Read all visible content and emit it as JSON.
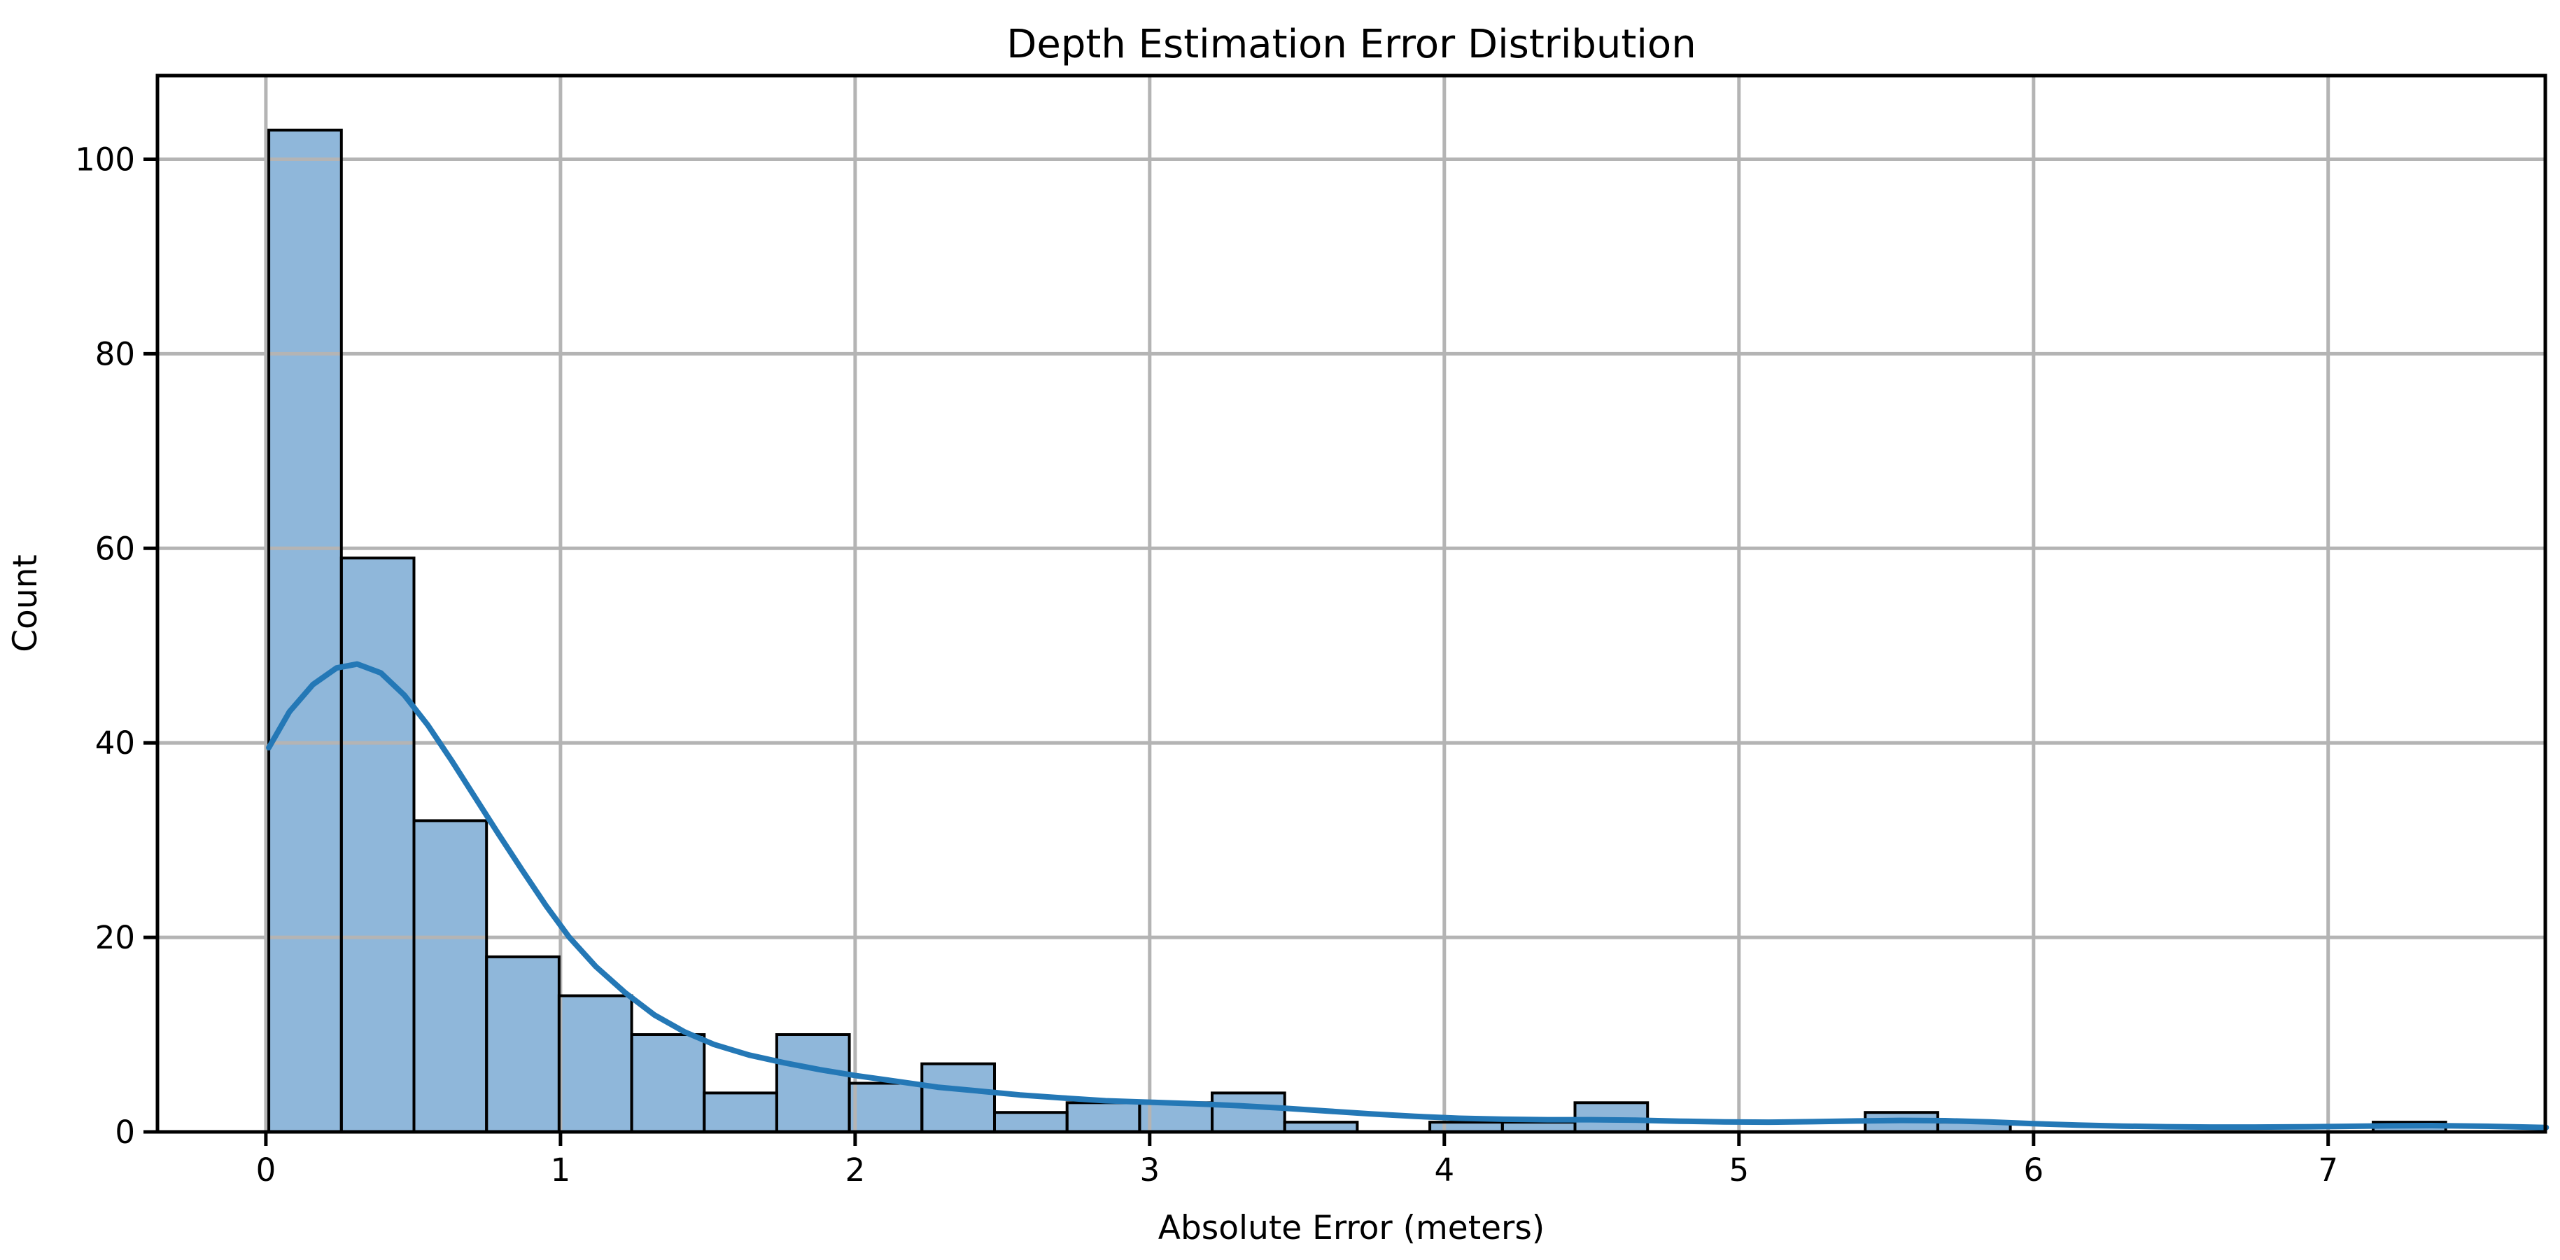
{
  "chart_data": {
    "type": "bar",
    "subtype": "histogram-with-kde",
    "title": "Depth Estimation Error Distribution",
    "xlabel": "Absolute Error (meters)",
    "ylabel": "Count",
    "x_ticks": [
      0,
      1,
      2,
      3,
      4,
      5,
      6,
      7
    ],
    "x_tick_labels": [
      "0",
      "1",
      "2",
      "3",
      "4",
      "5",
      "6",
      "7"
    ],
    "y_ticks": [
      0,
      20,
      40,
      60,
      80,
      100
    ],
    "y_tick_labels": [
      "0",
      "20",
      "40",
      "60",
      "80",
      "100"
    ],
    "xlim": [
      -0.368,
      7.737
    ],
    "ylim": [
      0,
      108.6
    ],
    "grid": true,
    "legend": false,
    "bin_start": 0.01,
    "bin_width": 0.2463,
    "bin_counts": [
      103,
      59,
      32,
      18,
      14,
      10,
      4,
      10,
      5,
      7,
      2,
      3,
      3,
      4,
      1,
      0,
      1,
      1,
      3,
      0,
      0,
      0,
      2,
      1,
      0,
      0,
      0,
      0,
      0,
      1
    ],
    "kde_points": [
      [
        0.01,
        39.5
      ],
      [
        0.08,
        43.2
      ],
      [
        0.16,
        46.0
      ],
      [
        0.24,
        47.7
      ],
      [
        0.31,
        48.1
      ],
      [
        0.39,
        47.2
      ],
      [
        0.47,
        44.9
      ],
      [
        0.55,
        41.8
      ],
      [
        0.63,
        38.2
      ],
      [
        0.71,
        34.4
      ],
      [
        0.79,
        30.6
      ],
      [
        0.87,
        26.9
      ],
      [
        0.95,
        23.3
      ],
      [
        1.03,
        20.0
      ],
      [
        1.12,
        17.0
      ],
      [
        1.22,
        14.3
      ],
      [
        1.32,
        12.0
      ],
      [
        1.42,
        10.3
      ],
      [
        1.52,
        9.0
      ],
      [
        1.64,
        7.9
      ],
      [
        1.76,
        7.1
      ],
      [
        1.88,
        6.4
      ],
      [
        2.0,
        5.8
      ],
      [
        2.14,
        5.2
      ],
      [
        2.28,
        4.6
      ],
      [
        2.42,
        4.2
      ],
      [
        2.56,
        3.8
      ],
      [
        2.7,
        3.5
      ],
      [
        2.85,
        3.2
      ],
      [
        3.0,
        3.05
      ],
      [
        3.15,
        2.9
      ],
      [
        3.3,
        2.7
      ],
      [
        3.45,
        2.45
      ],
      [
        3.6,
        2.15
      ],
      [
        3.75,
        1.85
      ],
      [
        3.9,
        1.6
      ],
      [
        4.05,
        1.4
      ],
      [
        4.2,
        1.3
      ],
      [
        4.35,
        1.25
      ],
      [
        4.5,
        1.25
      ],
      [
        4.65,
        1.2
      ],
      [
        4.8,
        1.1
      ],
      [
        4.95,
        1.02
      ],
      [
        5.1,
        1.0
      ],
      [
        5.25,
        1.05
      ],
      [
        5.4,
        1.12
      ],
      [
        5.55,
        1.18
      ],
      [
        5.7,
        1.15
      ],
      [
        5.85,
        1.02
      ],
      [
        6.0,
        0.85
      ],
      [
        6.15,
        0.7
      ],
      [
        6.3,
        0.6
      ],
      [
        6.45,
        0.53
      ],
      [
        6.6,
        0.5
      ],
      [
        6.75,
        0.5
      ],
      [
        6.9,
        0.52
      ],
      [
        7.05,
        0.57
      ],
      [
        7.2,
        0.62
      ],
      [
        7.35,
        0.65
      ],
      [
        7.5,
        0.6
      ],
      [
        7.62,
        0.53
      ],
      [
        7.74,
        0.45
      ]
    ],
    "colors": {
      "bar_fill": "#8FB7DA",
      "bar_edge": "#000000",
      "kde_line": "#2478B6",
      "grid": "#B4B4B4",
      "spine": "#000000",
      "background": "#FFFFFF",
      "text": "#000000"
    }
  }
}
